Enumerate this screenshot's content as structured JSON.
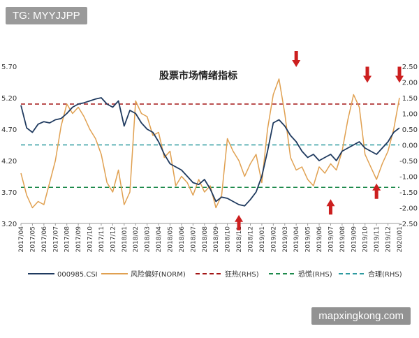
{
  "watermark_top": "TG: MYYJJPP",
  "watermark_bottom": "mapxingkong.com",
  "chart_data": {
    "type": "line",
    "title": "股票市场情绪指标",
    "x_ticks": [
      "2017/04",
      "2017/05",
      "2017/06",
      "2017/07",
      "2017/08",
      "2017/09",
      "2017/10",
      "2017/11",
      "2017/12",
      "2018/01",
      "2018/02",
      "2018/03",
      "2018/04",
      "2018/05",
      "2018/06",
      "2018/07",
      "2018/08",
      "2018/09",
      "2018/10",
      "2018/11",
      "2018/12",
      "2019/01",
      "2019/02",
      "2019/03",
      "2019/04",
      "2019/05",
      "2019/06",
      "2019/07",
      "2019/08",
      "2019/09",
      "2019/10",
      "2019/11",
      "2019/12",
      "2020/01"
    ],
    "left_axis": {
      "ticks": [
        "5.70",
        "5.20",
        "4.70",
        "4.20",
        "3.70",
        "3.20"
      ],
      "ylim": [
        3.2,
        5.7
      ]
    },
    "right_axis": {
      "ticks": [
        "2.50",
        "2.00",
        "1.50",
        "1.00",
        "0.50",
        "0.00",
        "-0.50",
        "-1.00",
        "-1.50",
        "-2.00",
        "-2.50"
      ],
      "ylim": [
        -2.5,
        2.5
      ]
    },
    "series": [
      {
        "name": "000985.CSI",
        "axis": "left",
        "color": "#1f3a5f",
        "x": [
          0,
          0.5,
          1,
          1.5,
          2,
          2.5,
          3,
          3.5,
          4,
          4.5,
          5,
          5.5,
          6,
          6.5,
          7,
          7.5,
          8,
          8.5,
          9,
          9.5,
          10,
          10.5,
          11,
          11.5,
          12,
          12.5,
          13,
          13.5,
          14,
          14.5,
          15,
          15.5,
          16,
          16.5,
          17,
          17.5,
          18,
          18.5,
          19,
          19.5,
          20,
          20.5,
          21,
          21.5,
          22,
          22.5,
          23,
          23.5,
          24,
          24.5,
          25,
          25.5,
          26,
          26.5,
          27,
          27.5,
          28,
          28.5,
          29,
          29.5,
          30,
          30.5,
          31,
          31.5,
          32,
          32.5,
          33
        ],
        "values": [
          5.08,
          4.72,
          4.65,
          4.78,
          4.82,
          4.8,
          4.85,
          4.87,
          4.95,
          5.05,
          5.1,
          5.12,
          5.15,
          5.18,
          5.2,
          5.1,
          5.05,
          5.15,
          4.75,
          5.0,
          4.95,
          4.8,
          4.7,
          4.65,
          4.5,
          4.3,
          4.15,
          4.1,
          4.05,
          3.95,
          3.85,
          3.82,
          3.9,
          3.75,
          3.55,
          3.62,
          3.6,
          3.55,
          3.5,
          3.48,
          3.58,
          3.7,
          3.95,
          4.35,
          4.8,
          4.85,
          4.75,
          4.6,
          4.5,
          4.35,
          4.25,
          4.3,
          4.2,
          4.25,
          4.3,
          4.2,
          4.35,
          4.4,
          4.45,
          4.5,
          4.4,
          4.35,
          4.3,
          4.4,
          4.5,
          4.65,
          4.72
        ]
      },
      {
        "name": "风险偏好(NORM)",
        "axis": "right",
        "color": "#e0a050",
        "x": [
          0,
          0.5,
          1,
          1.5,
          2,
          2.5,
          3,
          3.5,
          4,
          4.5,
          5,
          5.5,
          6,
          6.5,
          7,
          7.5,
          8,
          8.5,
          9,
          9.5,
          10,
          10.5,
          11,
          11.5,
          12,
          12.5,
          13,
          13.5,
          14,
          14.5,
          15,
          15.5,
          16,
          16.5,
          17,
          17.5,
          18,
          18.5,
          19,
          19.5,
          20,
          20.5,
          21,
          21.5,
          22,
          22.5,
          23,
          23.5,
          24,
          24.5,
          25,
          25.5,
          26,
          26.5,
          27,
          27.5,
          28,
          28.5,
          29,
          29.5,
          30,
          30.5,
          31,
          31.5,
          32,
          32.5,
          33
        ],
        "values": [
          -0.9,
          -1.6,
          -2.0,
          -1.8,
          -1.9,
          -1.2,
          -0.5,
          0.6,
          1.3,
          1.0,
          1.2,
          0.9,
          0.5,
          0.2,
          -0.3,
          -1.2,
          -1.5,
          -0.8,
          -1.9,
          -1.5,
          1.4,
          1.0,
          0.9,
          0.3,
          0.4,
          -0.4,
          -0.2,
          -1.3,
          -1.0,
          -1.2,
          -1.6,
          -1.1,
          -1.5,
          -1.3,
          -2.0,
          -1.6,
          0.2,
          -0.2,
          -0.5,
          -1.0,
          -0.6,
          -0.3,
          -1.2,
          0.5,
          1.6,
          2.1,
          1.0,
          -0.4,
          -0.8,
          -0.7,
          -1.1,
          -1.3,
          -0.7,
          -0.9,
          -0.6,
          -0.8,
          -0.2,
          0.8,
          1.6,
          1.2,
          -0.3,
          -0.7,
          -1.1,
          -0.6,
          -0.2,
          0.5,
          1.5
        ]
      }
    ],
    "reference_lines": [
      {
        "name": "狂热(RHS)",
        "value": 1.3,
        "color": "#a31515"
      },
      {
        "name": "恐慌(RHS)",
        "value": -1.35,
        "color": "#1e8a4c"
      },
      {
        "name": "合理(RHS)",
        "value": 0.0,
        "color": "#2e9aa0"
      }
    ],
    "annotations": [
      {
        "type": "arrow-down",
        "x": 24.0,
        "y": 2.5
      },
      {
        "type": "arrow-down",
        "x": 30.2,
        "y": 2.0
      },
      {
        "type": "arrow-down",
        "x": 33.0,
        "y": 2.0
      },
      {
        "type": "arrow-up",
        "x": 19.0,
        "y": -2.25
      },
      {
        "type": "arrow-up",
        "x": 27.0,
        "y": -1.75
      },
      {
        "type": "arrow-up",
        "x": 31.0,
        "y": -1.25
      }
    ],
    "legend_position": "bottom",
    "grid": false
  }
}
